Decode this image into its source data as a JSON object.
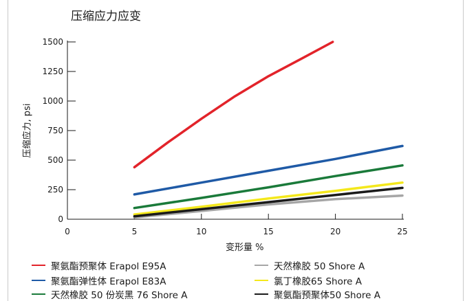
{
  "chart_data": {
    "type": "line",
    "title": "压缩应力应变",
    "xlabel": "变形量 %",
    "ylabel": "压缩应力, psi",
    "xlim": [
      0,
      25
    ],
    "ylim": [
      0,
      1500
    ],
    "xticks": [
      0,
      5,
      10,
      15,
      20,
      25
    ],
    "yticks": [
      0,
      250,
      500,
      750,
      1000,
      1250,
      1500
    ],
    "legend_position": "bottom",
    "series": [
      {
        "name": "聚氨酯预聚体 Erapol E95A",
        "color": "#e2232a",
        "x": [
          5,
          7.5,
          10,
          12.5,
          15,
          17.5,
          19.8
        ],
        "y": [
          440,
          650,
          850,
          1040,
          1210,
          1360,
          1500
        ]
      },
      {
        "name": "聚氨酯弹性体 Erapol E83A",
        "color": "#1f5aa6",
        "x": [
          5,
          10,
          15,
          20,
          25
        ],
        "y": [
          210,
          310,
          410,
          510,
          620
        ]
      },
      {
        "name": "天然橡胶 50 份炭黑 76 Shore A",
        "color": "#1a7a3a",
        "x": [
          5,
          10,
          15,
          20,
          25
        ],
        "y": [
          95,
          180,
          270,
          365,
          455
        ]
      },
      {
        "name": "天然橡胶 50 Shore A",
        "color": "#a6a6a6",
        "x": [
          5,
          10,
          15,
          20,
          25
        ],
        "y": [
          15,
          70,
          125,
          170,
          200
        ]
      },
      {
        "name": "氯丁橡胶65 Shore A",
        "color": "#f4e81c",
        "x": [
          5,
          10,
          15,
          20,
          25
        ],
        "y": [
          40,
          105,
          175,
          240,
          310
        ]
      },
      {
        "name": "聚氨酯预聚体50 Shore A",
        "color": "#1a1a1a",
        "x": [
          5,
          10,
          15,
          20,
          25
        ],
        "y": [
          25,
          85,
          145,
          205,
          265
        ]
      }
    ]
  }
}
